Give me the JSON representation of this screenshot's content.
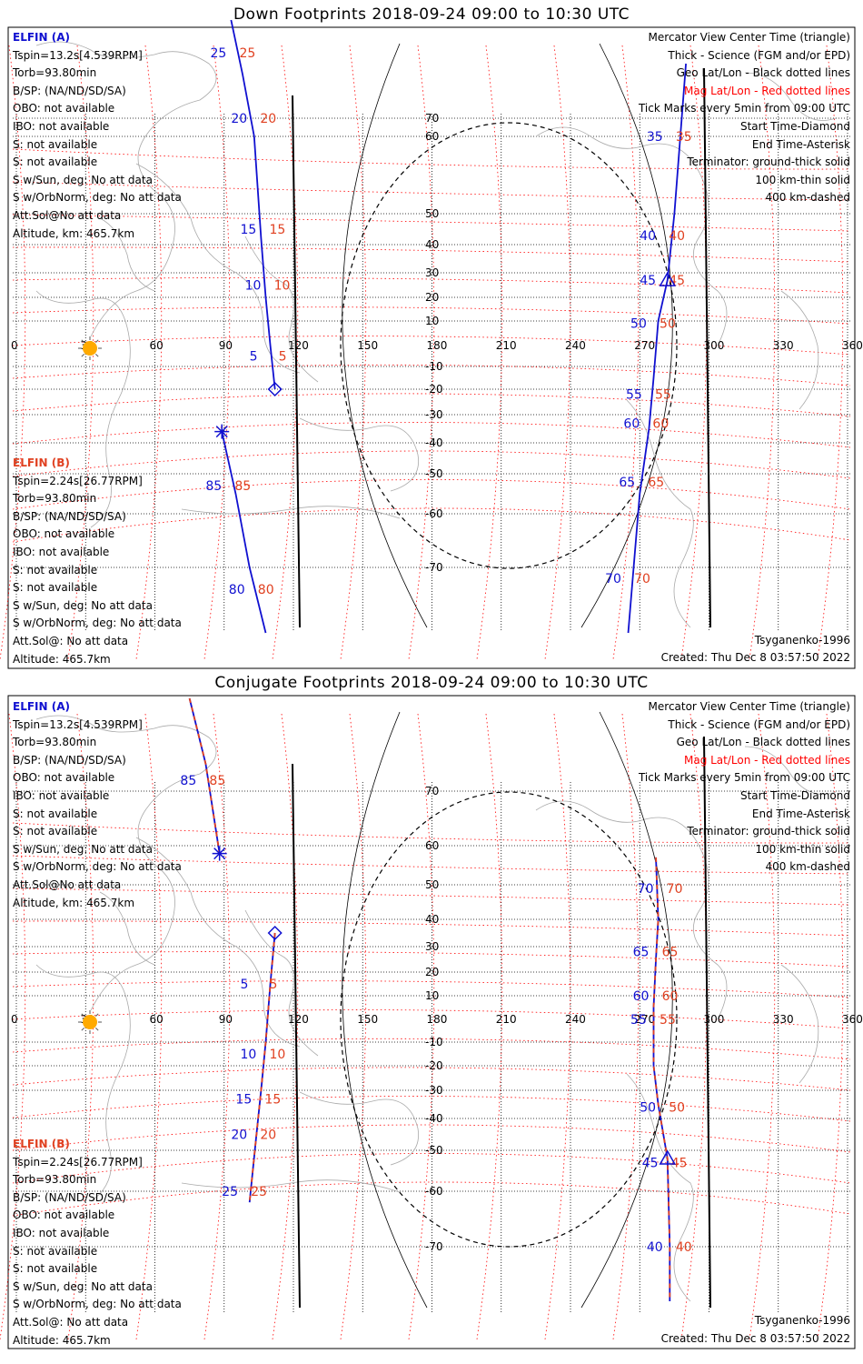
{
  "panels": [
    {
      "title": "Down Footprints 2018-09-24 09:00 to 10:30 UTC",
      "elfin_a": {
        "name": "ELFIN (A)",
        "lines": [
          "Tspin=13.2s[4.539RPM]",
          "Torb=93.80min",
          "B/SP: (NA/ND/SD/SA)",
          "OBO: not available",
          "IBO: not available",
          "S: not available",
          "S: not available",
          "S w/Sun, deg: No att data",
          "S w/OrbNorm, deg: No att data",
          "Att.Sol@No att data",
          "Altitude, km: 465.7km"
        ]
      },
      "elfin_b": {
        "name": "ELFIN (B)",
        "lines": [
          "Tspin=2.24s[26.77RPM]",
          "Torb=93.80min",
          "B/SP: (NA/ND/SD/SA)",
          "OBO: not available",
          "IBO: not available",
          "S: not available",
          "S: not available",
          "S w/Sun, deg: No att data",
          "S w/OrbNorm, deg: No att data",
          "Att.Sol@: No att data",
          "Altitude: 465.7km"
        ]
      },
      "track_a_labels": [
        {
          "t": "25",
          "lon": 95,
          "lat": 82
        },
        {
          "t": "20",
          "lon": 104,
          "lat": 70
        },
        {
          "t": "15",
          "lon": 108,
          "lat": 45
        },
        {
          "t": "10",
          "lon": 110,
          "lat": 25
        },
        {
          "t": "5",
          "lon": 112,
          "lat": -5
        }
      ],
      "track_b_labels": [
        {
          "t": "85",
          "lon": 93,
          "lat": -53
        },
        {
          "t": "80",
          "lon": 103,
          "lat": -74
        }
      ],
      "track_east_labels": [
        {
          "t": "35",
          "lon": 284,
          "lat": 60
        },
        {
          "t": "40",
          "lon": 281,
          "lat": 43
        },
        {
          "t": "45",
          "lon": 281,
          "lat": 27
        },
        {
          "t": "50",
          "lon": 277,
          "lat": 9
        },
        {
          "t": "55",
          "lon": 275,
          "lat": -22
        },
        {
          "t": "60",
          "lon": 274,
          "lat": -33
        },
        {
          "t": "65",
          "lon": 272,
          "lat": -52
        },
        {
          "t": "70",
          "lon": 266,
          "lat": -72
        }
      ]
    },
    {
      "title": "Conjugate Footprints 2018-09-24 09:00 to 10:30 UTC",
      "elfin_a": {
        "name": "ELFIN (A)",
        "lines": [
          "Tspin=13.2s[4.539RPM]",
          "Torb=93.80min",
          "B/SP: (NA/ND/SD/SA)",
          "OBO: not available",
          "IBO: not available",
          "S: not available",
          "S: not available",
          "S w/Sun, deg: No att data",
          "S w/OrbNorm, deg: No att data",
          "Att.Sol@No att data",
          "Altitude, km: 465.7km"
        ]
      },
      "elfin_b": {
        "name": "ELFIN (B)",
        "lines": [
          "Tspin=2.24s[26.77RPM]",
          "Torb=93.80min",
          "B/SP: (NA/ND/SD/SA)",
          "OBO: not available",
          "IBO: not available",
          "S: not available",
          "S: not available",
          "S w/Sun, deg: No att data",
          "S w/OrbNorm, deg: No att data",
          "Att.Sol@: No att data",
          "Altitude: 465.7km"
        ]
      },
      "track_a_labels": [
        {
          "t": "85",
          "lon": 82,
          "lat": 72
        },
        {
          "t": "5",
          "lon": 108,
          "lat": 15
        },
        {
          "t": "10",
          "lon": 108,
          "lat": -15
        },
        {
          "t": "15",
          "lon": 106,
          "lat": -33
        },
        {
          "t": "20",
          "lon": 104,
          "lat": -45
        },
        {
          "t": "25",
          "lon": 100,
          "lat": -60
        }
      ],
      "track_east_labels": [
        {
          "t": "70",
          "lon": 280,
          "lat": 49
        },
        {
          "t": "65",
          "lon": 278,
          "lat": 28
        },
        {
          "t": "60",
          "lon": 278,
          "lat": 10
        },
        {
          "t": "55",
          "lon": 277,
          "lat": 0
        },
        {
          "t": "50",
          "lon": 281,
          "lat": -36
        },
        {
          "t": "45",
          "lon": 282,
          "lat": -53
        },
        {
          "t": "40",
          "lon": 284,
          "lat": -70
        }
      ]
    }
  ],
  "legend_lines": [
    "Mercator View Center Time (triangle)",
    "Thick - Science (FGM and/or EPD)",
    "Geo Lat/Lon - Black dotted lines",
    "Mag Lat/Lon - Red dotted lines",
    "Tick Marks every 5min from 09:00 UTC",
    "Start Time-Diamond",
    "End Time-Asterisk",
    "Terminator: ground-thick solid",
    "100 km-thin solid",
    "400 km-dashed"
  ],
  "model": "Tsyganenko-1996",
  "created": "Created: Thu Dec  8 03:57:50 2022",
  "lon_ticks": [
    "0",
    "30",
    "60",
    "90",
    "120",
    "150",
    "180",
    "210",
    "240",
    "270",
    "300",
    "330",
    "360"
  ],
  "lat_ticks": [
    "70",
    "60",
    "50",
    "40",
    "30",
    "20",
    "10",
    "-10",
    "-20",
    "-30",
    "-40",
    "-50",
    "-60",
    "-70"
  ],
  "colors": {
    "sat_a": "#1010d0",
    "sat_b": "#e04020",
    "mag_grid": "#ff0000",
    "coast": "#aaaaaa",
    "sun": "#ffaa00"
  },
  "icons": {
    "sun": "sun-icon",
    "start": "diamond-marker",
    "end": "asterisk-marker",
    "center": "triangle-marker"
  }
}
